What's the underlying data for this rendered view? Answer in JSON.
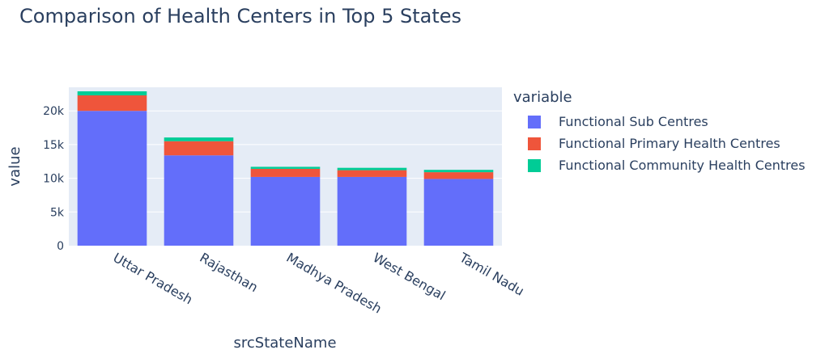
{
  "chart_data": {
    "type": "bar",
    "title": "Comparison of Health Centers in Top 5 States",
    "xlabel": "srcStateName",
    "ylabel": "value",
    "legend_title": "variable",
    "legend_position": "right",
    "grid": true,
    "barmode": "stack",
    "ylim": [
      0,
      23500
    ],
    "yticks": [
      0,
      5000,
      10000,
      15000,
      20000
    ],
    "ytick_labels": [
      "0",
      "5k",
      "10k",
      "15k",
      "20k"
    ],
    "categories": [
      "Uttar Pradesh",
      "Rajasthan",
      "Madhya Pradesh",
      "West Bengal",
      "Tamil Nadu"
    ],
    "series": [
      {
        "name": "Functional Sub Centres",
        "color": "#636efa",
        "values": [
          20000,
          13400,
          10200,
          10200,
          9900
        ]
      },
      {
        "name": "Functional Primary Health Centres",
        "color": "#ef553b",
        "values": [
          2300,
          2100,
          1200,
          1000,
          1000
        ]
      },
      {
        "name": "Functional Community Health Centres",
        "color": "#00cc96",
        "values": [
          600,
          550,
          300,
          350,
          350
        ]
      }
    ]
  }
}
